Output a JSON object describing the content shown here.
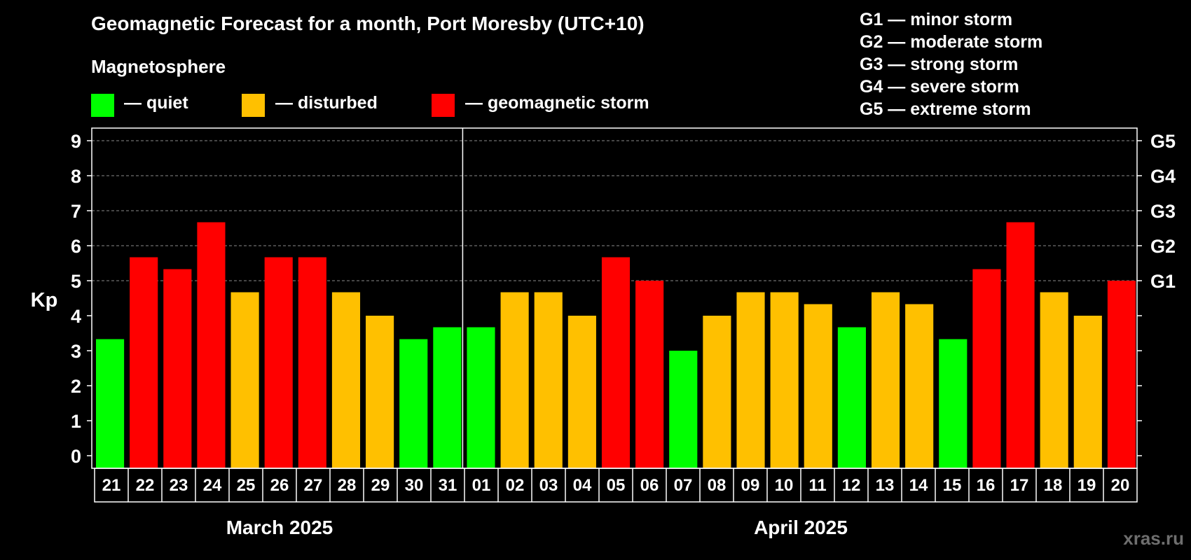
{
  "title": "Geomagnetic Forecast for a month, Port Moresby (UTC+10)",
  "subtitle": "Magnetosphere",
  "legend": [
    {
      "label": "— quiet",
      "color": "#00ff00"
    },
    {
      "label": "— disturbed",
      "color": "#ffc000"
    },
    {
      "label": "— geomagnetic storm",
      "color": "#ff0000"
    }
  ],
  "storm_scale": [
    "G1 — minor storm",
    "G2 — moderate storm",
    "G3 — strong storm",
    "G4 — severe storm",
    "G5 — extreme storm"
  ],
  "brand": "xras.ru",
  "chart_data": {
    "type": "bar",
    "title": "Geomagnetic Forecast for a month, Port Moresby (UTC+10)",
    "ylabel": "Kp",
    "ylim": [
      0,
      9
    ],
    "yticks": [
      "0",
      "1",
      "2",
      "3",
      "4",
      "5",
      "6",
      "7",
      "8",
      "9"
    ],
    "right_axis": {
      "5": "G1",
      "6": "G2",
      "7": "G3",
      "8": "G4",
      "9": "G5"
    },
    "grid": true,
    "categories": [
      "21",
      "22",
      "23",
      "24",
      "25",
      "26",
      "27",
      "28",
      "29",
      "30",
      "31",
      "01",
      "02",
      "03",
      "04",
      "05",
      "06",
      "07",
      "08",
      "09",
      "10",
      "11",
      "12",
      "13",
      "14",
      "15",
      "16",
      "17",
      "18",
      "19",
      "20"
    ],
    "months": [
      {
        "label": "March 2025",
        "start": 0,
        "count": 11
      },
      {
        "label": "April 2025",
        "start": 11,
        "count": 20
      }
    ],
    "values": [
      3.33,
      5.67,
      5.33,
      6.67,
      4.67,
      5.67,
      5.67,
      4.67,
      4.0,
      3.33,
      3.67,
      3.67,
      4.67,
      4.67,
      4.0,
      5.67,
      5.0,
      3.0,
      4.0,
      4.67,
      4.67,
      4.33,
      3.67,
      4.67,
      4.33,
      3.33,
      5.33,
      6.67,
      4.67,
      4.0,
      5.0
    ],
    "levels": [
      "quiet",
      "storm",
      "storm",
      "storm",
      "disturbed",
      "storm",
      "storm",
      "disturbed",
      "disturbed",
      "quiet",
      "quiet",
      "quiet",
      "disturbed",
      "disturbed",
      "disturbed",
      "storm",
      "storm",
      "quiet",
      "disturbed",
      "disturbed",
      "disturbed",
      "disturbed",
      "quiet",
      "disturbed",
      "disturbed",
      "quiet",
      "storm",
      "storm",
      "disturbed",
      "disturbed",
      "storm"
    ],
    "level_colors": {
      "quiet": "#00ff00",
      "disturbed": "#ffc000",
      "storm": "#ff0000"
    }
  }
}
